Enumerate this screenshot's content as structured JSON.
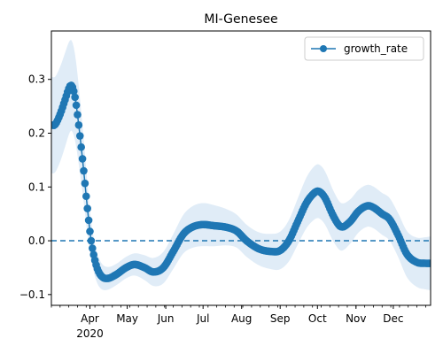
{
  "chart_data": {
    "type": "line",
    "title": "MI-Genesee",
    "xlabel": "",
    "ylabel": "",
    "x_axis": {
      "type": "date",
      "range": [
        "2020-03-01",
        "2020-12-31"
      ],
      "ticks": [
        {
          "date": "2020-04-01",
          "label": "Apr",
          "sublabel": "2020"
        },
        {
          "date": "2020-05-01",
          "label": "May"
        },
        {
          "date": "2020-06-01",
          "label": "Jun"
        },
        {
          "date": "2020-07-01",
          "label": "Jul"
        },
        {
          "date": "2020-08-01",
          "label": "Aug"
        },
        {
          "date": "2020-09-01",
          "label": "Sep"
        },
        {
          "date": "2020-10-01",
          "label": "Oct"
        },
        {
          "date": "2020-11-01",
          "label": "Nov"
        },
        {
          "date": "2020-12-01",
          "label": "Dec"
        }
      ]
    },
    "ylim": [
      -0.12,
      0.39
    ],
    "y_ticks": [
      -0.1,
      0.0,
      0.1,
      0.2,
      0.3
    ],
    "y_tick_labels": [
      "−0.1",
      "0.0",
      "0.1",
      "0.2",
      "0.3"
    ],
    "reference_line": {
      "y": 0,
      "style": "dashed",
      "color": "#1f77b4"
    },
    "legend": {
      "position": "top-right",
      "entries": [
        "growth_rate"
      ]
    },
    "colors": {
      "series": "#1f77b4",
      "band": "#c6dcf0"
    },
    "series": [
      {
        "name": "growth_rate",
        "marker": "circle",
        "anchors": [
          {
            "date": "2020-03-01",
            "y": 0.215
          },
          {
            "date": "2020-03-04",
            "y": 0.216
          },
          {
            "date": "2020-03-08",
            "y": 0.235
          },
          {
            "date": "2020-03-12",
            "y": 0.262
          },
          {
            "date": "2020-03-15",
            "y": 0.283
          },
          {
            "date": "2020-03-17",
            "y": 0.289
          },
          {
            "date": "2020-03-19",
            "y": 0.278
          },
          {
            "date": "2020-03-21",
            "y": 0.252
          },
          {
            "date": "2020-03-24",
            "y": 0.195
          },
          {
            "date": "2020-03-27",
            "y": 0.13
          },
          {
            "date": "2020-03-30",
            "y": 0.06
          },
          {
            "date": "2020-04-02",
            "y": 0.0
          },
          {
            "date": "2020-04-06",
            "y": -0.045
          },
          {
            "date": "2020-04-10",
            "y": -0.065
          },
          {
            "date": "2020-04-15",
            "y": -0.07
          },
          {
            "date": "2020-04-22",
            "y": -0.063
          },
          {
            "date": "2020-04-30",
            "y": -0.05
          },
          {
            "date": "2020-05-07",
            "y": -0.044
          },
          {
            "date": "2020-05-15",
            "y": -0.05
          },
          {
            "date": "2020-05-22",
            "y": -0.058
          },
          {
            "date": "2020-05-30",
            "y": -0.05
          },
          {
            "date": "2020-06-07",
            "y": -0.02
          },
          {
            "date": "2020-06-15",
            "y": 0.012
          },
          {
            "date": "2020-06-22",
            "y": 0.025
          },
          {
            "date": "2020-06-30",
            "y": 0.03
          },
          {
            "date": "2020-07-10",
            "y": 0.028
          },
          {
            "date": "2020-07-20",
            "y": 0.025
          },
          {
            "date": "2020-07-28",
            "y": 0.018
          },
          {
            "date": "2020-08-05",
            "y": 0.0
          },
          {
            "date": "2020-08-15",
            "y": -0.015
          },
          {
            "date": "2020-08-25",
            "y": -0.02
          },
          {
            "date": "2020-09-01",
            "y": -0.018
          },
          {
            "date": "2020-09-08",
            "y": 0.0
          },
          {
            "date": "2020-09-15",
            "y": 0.035
          },
          {
            "date": "2020-09-22",
            "y": 0.07
          },
          {
            "date": "2020-09-28",
            "y": 0.088
          },
          {
            "date": "2020-10-02",
            "y": 0.092
          },
          {
            "date": "2020-10-07",
            "y": 0.08
          },
          {
            "date": "2020-10-14",
            "y": 0.045
          },
          {
            "date": "2020-10-20",
            "y": 0.026
          },
          {
            "date": "2020-10-27",
            "y": 0.035
          },
          {
            "date": "2020-11-03",
            "y": 0.055
          },
          {
            "date": "2020-11-10",
            "y": 0.065
          },
          {
            "date": "2020-11-15",
            "y": 0.062
          },
          {
            "date": "2020-11-22",
            "y": 0.05
          },
          {
            "date": "2020-11-28",
            "y": 0.04
          },
          {
            "date": "2020-12-05",
            "y": 0.01
          },
          {
            "date": "2020-12-12",
            "y": -0.025
          },
          {
            "date": "2020-12-20",
            "y": -0.04
          },
          {
            "date": "2020-12-28",
            "y": -0.042
          }
        ],
        "band_halfwidth": [
          {
            "date": "2020-03-01",
            "w": 0.09
          },
          {
            "date": "2020-03-20",
            "w": 0.08
          },
          {
            "date": "2020-04-05",
            "w": 0.03
          },
          {
            "date": "2020-05-01",
            "w": 0.02
          },
          {
            "date": "2020-06-01",
            "w": 0.03
          },
          {
            "date": "2020-07-01",
            "w": 0.04
          },
          {
            "date": "2020-08-01",
            "w": 0.03
          },
          {
            "date": "2020-09-01",
            "w": 0.035
          },
          {
            "date": "2020-10-01",
            "w": 0.05
          },
          {
            "date": "2020-11-01",
            "w": 0.04
          },
          {
            "date": "2020-12-01",
            "w": 0.04
          },
          {
            "date": "2020-12-31",
            "w": 0.05
          }
        ]
      }
    ]
  }
}
